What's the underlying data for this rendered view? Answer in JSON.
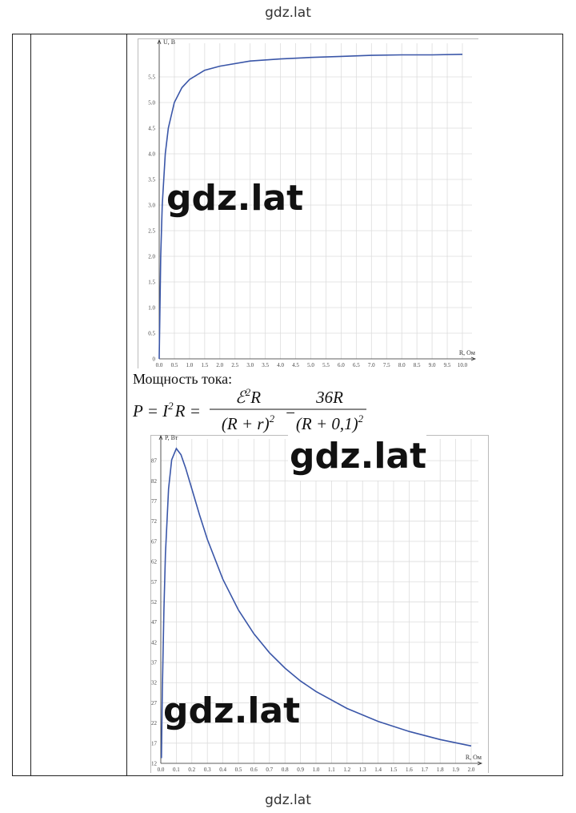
{
  "header": "gdz.lat",
  "footer": "gdz.lat",
  "text": "Мощность тока:",
  "formula": {
    "lhs": "P = I",
    "lhs_sup": "2",
    "lhs_end": "R =",
    "num1": "ℰ",
    "num1_sup": "2",
    "num1_end": "R",
    "den1": "(R + r)",
    "den1_sup": "2",
    "eq": "=",
    "num2": "36R",
    "den2": "(R + 0,1)",
    "den2_sup": "2"
  },
  "watermarks": [
    "gdz.lat",
    "gdz.lat",
    "gdz.lat"
  ],
  "chart_data": [
    {
      "type": "line",
      "ylabel": "U, В",
      "xlabel": "R, Ом",
      "grid": true,
      "color": "#3a56a8",
      "x": [
        0,
        0.05,
        0.1,
        0.2,
        0.3,
        0.5,
        0.75,
        1,
        1.5,
        2,
        3,
        4,
        5,
        6,
        7,
        8,
        9,
        10
      ],
      "values": [
        0,
        2.0,
        3.0,
        4.0,
        4.5,
        5.0,
        5.29,
        5.45,
        5.63,
        5.71,
        5.81,
        5.85,
        5.88,
        5.9,
        5.92,
        5.93,
        5.93,
        5.94
      ],
      "xlim": [
        0,
        10
      ],
      "ylim": [
        0,
        6
      ],
      "xticks": [
        {
          "value": 0,
          "label": "0.0"
        },
        0.5,
        {
          "value": 1,
          "label": "1.0"
        },
        1.5,
        {
          "value": 2,
          "label": "2.0"
        },
        2.5,
        {
          "value": 3,
          "label": "3.0"
        },
        3.5,
        {
          "value": 4,
          "label": "4.0"
        },
        4.5,
        {
          "value": 5,
          "label": "5.0"
        },
        5.5,
        {
          "value": 6,
          "label": "6.0"
        },
        6.5,
        {
          "value": 7,
          "label": "7.0"
        },
        7.5,
        {
          "value": 8,
          "label": "8.0"
        },
        8.5,
        {
          "value": 9,
          "label": "9.0"
        },
        9.5,
        {
          "value": 10,
          "label": "10.0"
        }
      ],
      "yticks": [
        0,
        0.5,
        {
          "value": 1,
          "label": "1.0"
        },
        1.5,
        {
          "value": 2,
          "label": "2.0"
        },
        2.5,
        {
          "value": 3,
          "label": "3.0"
        },
        3.5,
        {
          "value": 4,
          "label": "4.0"
        },
        4.5,
        {
          "value": 5,
          "label": "5.0"
        },
        5.5
      ]
    },
    {
      "type": "line",
      "ylabel": "P, Вт",
      "xlabel": "R, Ом",
      "grid": true,
      "color": "#3a56a8",
      "x": [
        0.004,
        0.01,
        0.02,
        0.03,
        0.05,
        0.07,
        0.1,
        0.13,
        0.16,
        0.2,
        0.25,
        0.3,
        0.4,
        0.5,
        0.6,
        0.7,
        0.8,
        0.9,
        1.0,
        1.2,
        1.4,
        1.6,
        1.8,
        2.0
      ],
      "values": [
        13.3,
        29.8,
        50.0,
        63.9,
        80.0,
        87.2,
        90.0,
        88.5,
        85.2,
        80.0,
        73.5,
        67.5,
        57.6,
        50.0,
        44.1,
        39.4,
        35.6,
        32.4,
        29.8,
        25.6,
        22.4,
        19.9,
        17.9,
        16.3
      ],
      "xlim": [
        0,
        2
      ],
      "ylim": [
        12,
        90
      ],
      "xticks": [
        {
          "value": 0,
          "label": "0.0"
        },
        0.1,
        0.2,
        0.3,
        0.4,
        0.5,
        0.6,
        0.7,
        0.8,
        0.9,
        {
          "value": 1,
          "label": "1.0"
        },
        1.1,
        1.2,
        1.3,
        1.4,
        1.5,
        1.6,
        1.7,
        1.8,
        1.9,
        {
          "value": 2,
          "label": "2.0"
        }
      ],
      "yticks": [
        12,
        17,
        22,
        27,
        32,
        37,
        42,
        47,
        52,
        57,
        62,
        67,
        72,
        77,
        82,
        87
      ]
    }
  ]
}
